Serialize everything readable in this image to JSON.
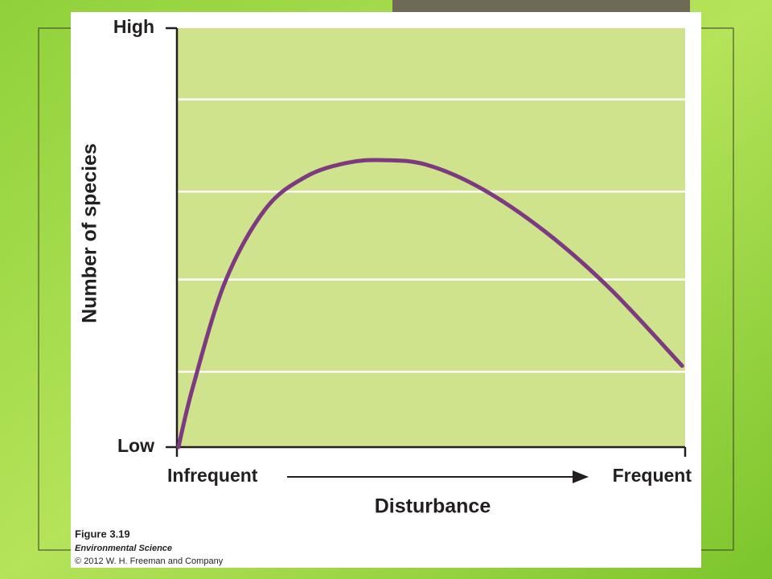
{
  "chart_data": {
    "type": "line",
    "y_label": "Number of species",
    "x_label": "Disturbance",
    "xlim": [
      0,
      100
    ],
    "ylim": [
      0,
      100
    ],
    "xticks": [
      {
        "value": 0,
        "label": "Infrequent"
      },
      {
        "value": 100,
        "label": "Frequent"
      }
    ],
    "yticks": [
      {
        "value": 0,
        "label": "Low"
      },
      {
        "value": 100,
        "label": "High"
      }
    ],
    "ygrid": [
      18,
      40,
      61,
      83
    ],
    "series": [
      {
        "color": "#7d3a80",
        "x": [
          0.3,
          3.2,
          9.5,
          17.4,
          25.3,
          33.2,
          40.3,
          49.1,
          60.1,
          72.8,
          85.4,
          99.4
        ],
        "values": [
          0,
          14.6,
          39.5,
          56.8,
          64.5,
          67.8,
          68.5,
          67.4,
          61.6,
          51.1,
          37.6,
          19.4
        ]
      }
    ]
  },
  "caption": {
    "figure": "Figure 3.19",
    "book": "Environmental Science",
    "copyright": "© 2012 W. H. Freeman and Company"
  }
}
